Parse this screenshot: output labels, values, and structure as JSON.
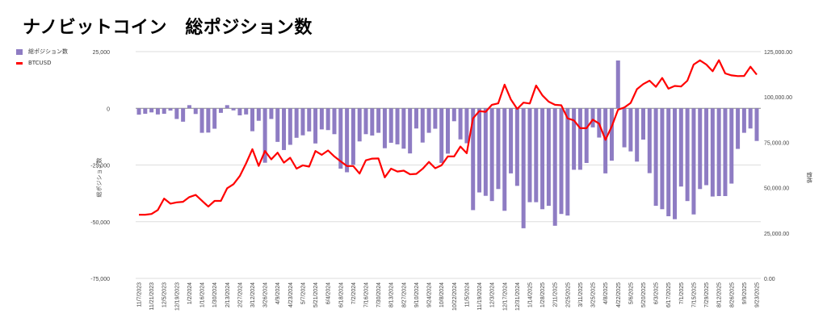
{
  "title": "ナノビットコイン　総ポジション数",
  "chart_data": {
    "type": "bar+line",
    "title": "ナノビットコイン　総ポジション数",
    "legend_position": "top-left",
    "ylabel_left": "総ポジション数",
    "ylabel_right": "価格",
    "ylim_left": [
      -75000,
      25000
    ],
    "ylim_right": [
      0,
      125000
    ],
    "left_ticks": [
      {
        "value": 25000,
        "label": "25,000"
      },
      {
        "value": 0,
        "label": "0"
      },
      {
        "value": -25000,
        "label": "-25,000"
      },
      {
        "value": -50000,
        "label": "-50,000"
      },
      {
        "value": -75000,
        "label": "-75,000"
      }
    ],
    "right_ticks": [
      {
        "value": 125000,
        "label": "125,000.00"
      },
      {
        "value": 100000,
        "label": "100,000.00"
      },
      {
        "value": 75000,
        "label": "75,000.00"
      },
      {
        "value": 50000,
        "label": "50,000.00"
      },
      {
        "value": 25000,
        "label": "25,000.00"
      },
      {
        "value": 0,
        "label": "0.00"
      }
    ],
    "x_tick_labels": [
      "11/7/2023",
      "11/21/2023",
      "12/5/2023",
      "12/19/2023",
      "1/2/2024",
      "1/16/2024",
      "1/30/2024",
      "2/13/2024",
      "2/27/2024",
      "3/12/2024",
      "3/26/2024",
      "4/9/2024",
      "4/23/2024",
      "5/7/2024",
      "5/21/2024",
      "6/4/2024",
      "6/18/2024",
      "7/2/2024",
      "7/16/2024",
      "7/30/2024",
      "8/13/2024",
      "8/27/2024",
      "9/10/2024",
      "9/24/2024",
      "10/8/2024",
      "10/22/2024",
      "11/5/2024",
      "11/19/2024",
      "12/3/2024",
      "12/17/2024",
      "12/31/2024",
      "1/14/2025",
      "1/28/2025",
      "2/11/2025",
      "2/25/2025",
      "3/11/2025",
      "3/25/2025",
      "4/8/2025",
      "4/22/2025",
      "5/6/2025",
      "5/20/2025",
      "6/3/2025",
      "6/17/2025",
      "7/1/2025",
      "7/15/2025",
      "7/29/2025",
      "8/12/2025",
      "8/26/2025",
      "9/9/2025",
      "9/23/2025"
    ],
    "series": [
      {
        "name": "総ポジション数",
        "type": "bar",
        "axis": "left",
        "color": "#8e7cc3",
        "values": [
          -2800,
          -2400,
          -1800,
          -2700,
          -2400,
          -1000,
          -4700,
          -5900,
          1400,
          -2500,
          -10800,
          -10700,
          -9000,
          -2000,
          1400,
          -900,
          -3100,
          -2700,
          -10100,
          -5500,
          -24000,
          -4700,
          -14800,
          -18400,
          -16100,
          -13000,
          -11900,
          -10200,
          -15500,
          -9300,
          -9600,
          -11400,
          -26600,
          -28200,
          -24900,
          -14600,
          -11400,
          -12000,
          -10800,
          -17600,
          -15200,
          -15900,
          -17800,
          -19900,
          -8900,
          -15100,
          -10800,
          -9000,
          -24100,
          -20000,
          -5700,
          -13700,
          -15400,
          -44900,
          -37100,
          -38600,
          -40900,
          -35600,
          -45200,
          -28700,
          -34200,
          -52900,
          -41400,
          -41400,
          -44500,
          -43000,
          -51800,
          -46600,
          -47300,
          -27100,
          -27100,
          -24100,
          -8400,
          -12900,
          -28700,
          -23100,
          21100,
          -17200,
          -19000,
          -23500,
          -13800,
          -28600,
          -43000,
          -44500,
          -47600,
          -48900,
          -34500,
          -40900,
          -46800,
          -35600,
          -33900,
          -38900,
          -38700,
          -38700,
          -33200,
          -17900,
          -10800,
          -8900,
          -14400
        ]
      },
      {
        "name": "BTCUSD",
        "type": "line",
        "axis": "right",
        "color": "#ff0000",
        "values": [
          35100,
          35100,
          35500,
          37700,
          44000,
          41200,
          41900,
          42200,
          44800,
          46000,
          42800,
          39600,
          42700,
          42700,
          49700,
          51900,
          56400,
          63400,
          71200,
          62000,
          70200,
          65600,
          69300,
          63800,
          66500,
          60500,
          62300,
          61600,
          70200,
          68100,
          70500,
          67200,
          64500,
          61900,
          61900,
          57800,
          65100,
          66000,
          66100,
          55700,
          60500,
          58900,
          59400,
          57400,
          57600,
          60400,
          64200,
          60700,
          62300,
          67200,
          67200,
          72700,
          69000,
          88200,
          92200,
          91800,
          95700,
          96500,
          106800,
          98600,
          93400,
          96900,
          96400,
          106300,
          100900,
          97400,
          95700,
          95400,
          88200,
          87100,
          82800,
          82800,
          87500,
          85300,
          76400,
          83800,
          93000,
          94200,
          96700,
          104300,
          107100,
          109000,
          105600,
          110500,
          104600,
          106100,
          105800,
          109000,
          117900,
          120200,
          117900,
          114200,
          120300,
          113000,
          111900,
          111500,
          111600,
          116700,
          112300
        ]
      }
    ]
  }
}
